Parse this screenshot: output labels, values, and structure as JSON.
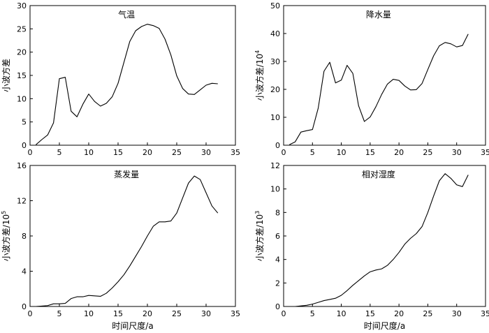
{
  "chart_data": [
    {
      "type": "line",
      "title": "气温",
      "xlabel": "",
      "ylabel": "小波方差",
      "ylabel_exp": "",
      "xlim": [
        0,
        35
      ],
      "ylim": [
        0,
        30
      ],
      "xticks": [
        0,
        5,
        10,
        15,
        20,
        25,
        30,
        35
      ],
      "yticks": [
        0,
        5,
        10,
        15,
        20,
        25,
        30
      ],
      "x": [
        1,
        2,
        3,
        4,
        5,
        6,
        7,
        8,
        9,
        10,
        11,
        12,
        13,
        14,
        15,
        16,
        17,
        18,
        19,
        20,
        21,
        22,
        23,
        24,
        25,
        26,
        27,
        28,
        29,
        30,
        31,
        32
      ],
      "y": [
        0.1,
        1.2,
        2.2,
        4.8,
        14.3,
        14.6,
        7.3,
        6.1,
        8.8,
        11.0,
        9.4,
        8.4,
        9.0,
        10.4,
        13.3,
        17.8,
        22.3,
        24.6,
        25.5,
        26.0,
        25.7,
        25.1,
        22.8,
        19.4,
        14.9,
        12.2,
        11.0,
        10.9,
        11.9,
        12.9,
        13.3,
        13.2
      ]
    },
    {
      "type": "line",
      "title": "降水量",
      "xlabel": "",
      "ylabel": "小波方差/10",
      "ylabel_exp": "4",
      "xlim": [
        0,
        35
      ],
      "ylim": [
        0,
        50
      ],
      "xticks": [
        0,
        5,
        10,
        15,
        20,
        25,
        30,
        35
      ],
      "yticks": [
        0,
        10,
        20,
        30,
        40,
        50
      ],
      "x": [
        1,
        2,
        3,
        4,
        5,
        6,
        7,
        8,
        9,
        10,
        11,
        12,
        13,
        14,
        15,
        16,
        17,
        18,
        19,
        20,
        21,
        22,
        23,
        24,
        25,
        26,
        27,
        28,
        29,
        30,
        31,
        32
      ],
      "y": [
        0.2,
        1.2,
        4.7,
        5.2,
        5.6,
        13.3,
        26.5,
        29.7,
        22.3,
        23.3,
        28.6,
        25.7,
        14.1,
        8.5,
        10.1,
        13.8,
        18.2,
        21.9,
        23.6,
        23.2,
        21.2,
        19.8,
        19.9,
        22.1,
        27.1,
        32.0,
        35.6,
        36.8,
        36.3,
        35.2,
        35.7,
        39.8
      ]
    },
    {
      "type": "line",
      "title": "蒸发量",
      "xlabel": "时间尺度/a",
      "ylabel": "小波方差/10",
      "ylabel_exp": "5",
      "xlim": [
        0,
        35
      ],
      "ylim": [
        0,
        16
      ],
      "xticks": [
        0,
        5,
        10,
        15,
        20,
        25,
        30,
        35
      ],
      "yticks": [
        0,
        4,
        8,
        12,
        16
      ],
      "x": [
        1,
        2,
        3,
        4,
        5,
        6,
        7,
        8,
        9,
        10,
        11,
        12,
        13,
        14,
        15,
        16,
        17,
        18,
        19,
        20,
        21,
        22,
        23,
        24,
        25,
        26,
        27,
        28,
        29,
        30,
        31,
        32
      ],
      "y": [
        0.0,
        0.05,
        0.1,
        0.3,
        0.3,
        0.35,
        0.9,
        1.1,
        1.1,
        1.25,
        1.2,
        1.15,
        1.5,
        2.1,
        2.8,
        3.6,
        4.6,
        5.7,
        6.8,
        8.0,
        9.1,
        9.6,
        9.6,
        9.7,
        10.6,
        12.3,
        14.0,
        14.8,
        14.4,
        12.9,
        11.4,
        10.6
      ]
    },
    {
      "type": "line",
      "title": "相对湿度",
      "xlabel": "时间尺度/a",
      "ylabel": "小波方差/10",
      "ylabel_exp": "3",
      "xlim": [
        0,
        35
      ],
      "ylim": [
        0,
        12
      ],
      "xticks": [
        0,
        5,
        10,
        15,
        20,
        25,
        30,
        35
      ],
      "yticks": [
        0,
        2,
        4,
        6,
        8,
        10,
        12
      ],
      "x": [
        1,
        2,
        3,
        4,
        5,
        6,
        7,
        8,
        9,
        10,
        11,
        12,
        13,
        14,
        15,
        16,
        17,
        18,
        19,
        20,
        21,
        22,
        23,
        24,
        25,
        26,
        27,
        28,
        29,
        30,
        31,
        32
      ],
      "y": [
        0.0,
        0.0,
        0.05,
        0.1,
        0.2,
        0.35,
        0.5,
        0.6,
        0.7,
        0.95,
        1.35,
        1.8,
        2.2,
        2.6,
        2.95,
        3.1,
        3.2,
        3.5,
        4.0,
        4.6,
        5.3,
        5.8,
        6.2,
        6.8,
        8.0,
        9.4,
        10.7,
        11.3,
        10.9,
        10.35,
        10.2,
        11.2
      ]
    }
  ]
}
